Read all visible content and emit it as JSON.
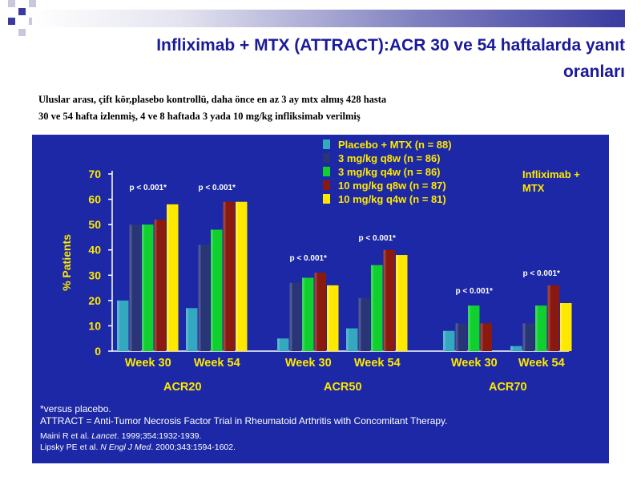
{
  "slide": {
    "title": "Infliximab + MTX (ATTRACT):ACR  30 ve 54 haftalarda  yanıt oranları",
    "subtitle_line1": "Uluslar arası, çift kör,plasebo kontrollü, daha önce en az 3 ay mtx almış 428 hasta",
    "subtitle_line2": "30 ve 54 hafta izlenmiş, 4 ve 8 haftada 3 yada 10 mg/kg infliksimab verilmiş"
  },
  "chart_data": {
    "type": "bar",
    "ylabel": "% Patients",
    "ylim": [
      0,
      70
    ],
    "yticks": [
      0,
      10,
      20,
      30,
      40,
      50,
      60,
      70
    ],
    "inset_label": "Infliximab + MTX",
    "groups": [
      {
        "name": "ACR20",
        "categories": [
          "Week 30",
          "Week 54"
        ]
      },
      {
        "name": "ACR50",
        "categories": [
          "Week 30",
          "Week 54"
        ]
      },
      {
        "name": "ACR70",
        "categories": [
          "Week 30",
          "Week 54"
        ]
      }
    ],
    "categories": [
      "ACR20 Week 30",
      "ACR20 Week 54",
      "ACR50 Week 30",
      "ACR50 Week 54",
      "ACR70 Week 30",
      "ACR70 Week 54"
    ],
    "series": [
      {
        "name": "Placebo + MTX (n = 88)",
        "color": "#33a8c0",
        "values": [
          20,
          17,
          5,
          9,
          8,
          2
        ]
      },
      {
        "name": "3 mg/kg q8w (n = 86)",
        "color": "#2a3578",
        "values": [
          50,
          42,
          27,
          21,
          11,
          11
        ]
      },
      {
        "name": "3 mg/kg q4w (n = 86)",
        "color": "#10d030",
        "values": [
          50,
          48,
          29,
          34,
          18,
          18
        ]
      },
      {
        "name": "10 mg/kg q8w (n = 87)",
        "color": "#8a1a10",
        "values": [
          52,
          59,
          31,
          40,
          11,
          26
        ]
      },
      {
        "name": "10 mg/kg q4w (n = 81)",
        "color": "#ffe800",
        "values": [
          58,
          59,
          26,
          38,
          0,
          19
        ]
      }
    ],
    "annotations": [
      {
        "text": "p < 0.001*",
        "category": 0,
        "y": 65
      },
      {
        "text": "p < 0.001*",
        "category": 1,
        "y": 65
      },
      {
        "text": "p < 0.001*",
        "category": 2,
        "y": 37
      },
      {
        "text": "p < 0.001*",
        "category": 3,
        "y": 45
      },
      {
        "text": "p < 0.001*",
        "category": 4,
        "y": 24
      },
      {
        "text": "p < 0.001*",
        "category": 5,
        "y": 31
      }
    ],
    "legend_position": "top-right",
    "grid": false
  },
  "footnotes": {
    "line1": "*versus placebo.",
    "line2": "ATTRACT = Anti-Tumor Necrosis Factor Trial in Rheumatoid Arthritis with Concomitant Therapy.",
    "ref1_authors": "Maini R et al. ",
    "ref1_journal": "Lancet",
    "ref1_rest": ". 1999;354:1932-1939.",
    "ref2_authors": "Lipsky PE et al. ",
    "ref2_journal": "N Engl J Med",
    "ref2_rest": ". 2000;343:1594-1602."
  }
}
